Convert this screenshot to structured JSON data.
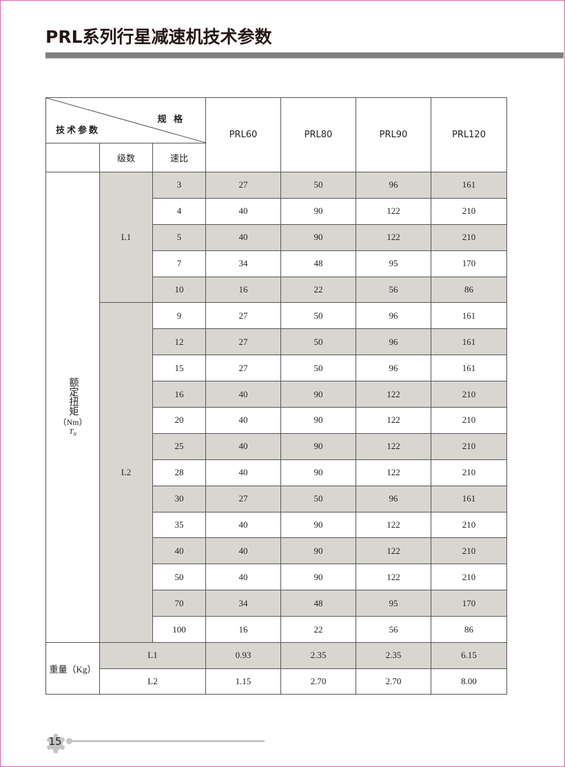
{
  "page": {
    "title": "PRL系列行星减速机技术参数",
    "page_number": "15",
    "frame_color": "#e060a8",
    "shade_color": "#d9d6d2"
  },
  "table": {
    "header": {
      "spec_label": "规 格",
      "param_label": "技术参数",
      "stage_label": "级数",
      "ratio_label": "速比",
      "models": [
        "PRL60",
        "PRL80",
        "PRL90",
        "PRL120"
      ]
    },
    "torque_label": "额定扭矩",
    "torque_unit": "（Nm）",
    "torque_symbol": "T",
    "torque_symbol_sub": "N",
    "groups": [
      {
        "stage": "L1",
        "rows": [
          {
            "ratio": "3",
            "values": [
              "27",
              "50",
              "96",
              "161"
            ]
          },
          {
            "ratio": "4",
            "values": [
              "40",
              "90",
              "122",
              "210"
            ]
          },
          {
            "ratio": "5",
            "values": [
              "40",
              "90",
              "122",
              "210"
            ]
          },
          {
            "ratio": "7",
            "values": [
              "34",
              "48",
              "95",
              "170"
            ]
          },
          {
            "ratio": "10",
            "values": [
              "16",
              "22",
              "56",
              "86"
            ]
          }
        ]
      },
      {
        "stage": "L2",
        "rows": [
          {
            "ratio": "9",
            "values": [
              "27",
              "50",
              "96",
              "161"
            ]
          },
          {
            "ratio": "12",
            "values": [
              "27",
              "50",
              "96",
              "161"
            ]
          },
          {
            "ratio": "15",
            "values": [
              "27",
              "50",
              "96",
              "161"
            ]
          },
          {
            "ratio": "16",
            "values": [
              "40",
              "90",
              "122",
              "210"
            ]
          },
          {
            "ratio": "20",
            "values": [
              "40",
              "90",
              "122",
              "210"
            ]
          },
          {
            "ratio": "25",
            "values": [
              "40",
              "90",
              "122",
              "210"
            ]
          },
          {
            "ratio": "28",
            "values": [
              "40",
              "90",
              "122",
              "210"
            ]
          },
          {
            "ratio": "30",
            "values": [
              "27",
              "50",
              "96",
              "161"
            ]
          },
          {
            "ratio": "35",
            "values": [
              "40",
              "90",
              "122",
              "210"
            ]
          },
          {
            "ratio": "40",
            "values": [
              "40",
              "90",
              "122",
              "210"
            ]
          },
          {
            "ratio": "50",
            "values": [
              "40",
              "90",
              "122",
              "210"
            ]
          },
          {
            "ratio": "70",
            "values": [
              "34",
              "48",
              "95",
              "170"
            ]
          },
          {
            "ratio": "100",
            "values": [
              "16",
              "22",
              "56",
              "86"
            ]
          }
        ]
      }
    ],
    "weight": {
      "label": "重量（Kg）",
      "rows": [
        {
          "stage": "L1",
          "values": [
            "0.93",
            "2.35",
            "2.35",
            "6.15"
          ]
        },
        {
          "stage": "L2",
          "values": [
            "1.15",
            "2.70",
            "2.70",
            "8.00"
          ]
        }
      ]
    }
  }
}
